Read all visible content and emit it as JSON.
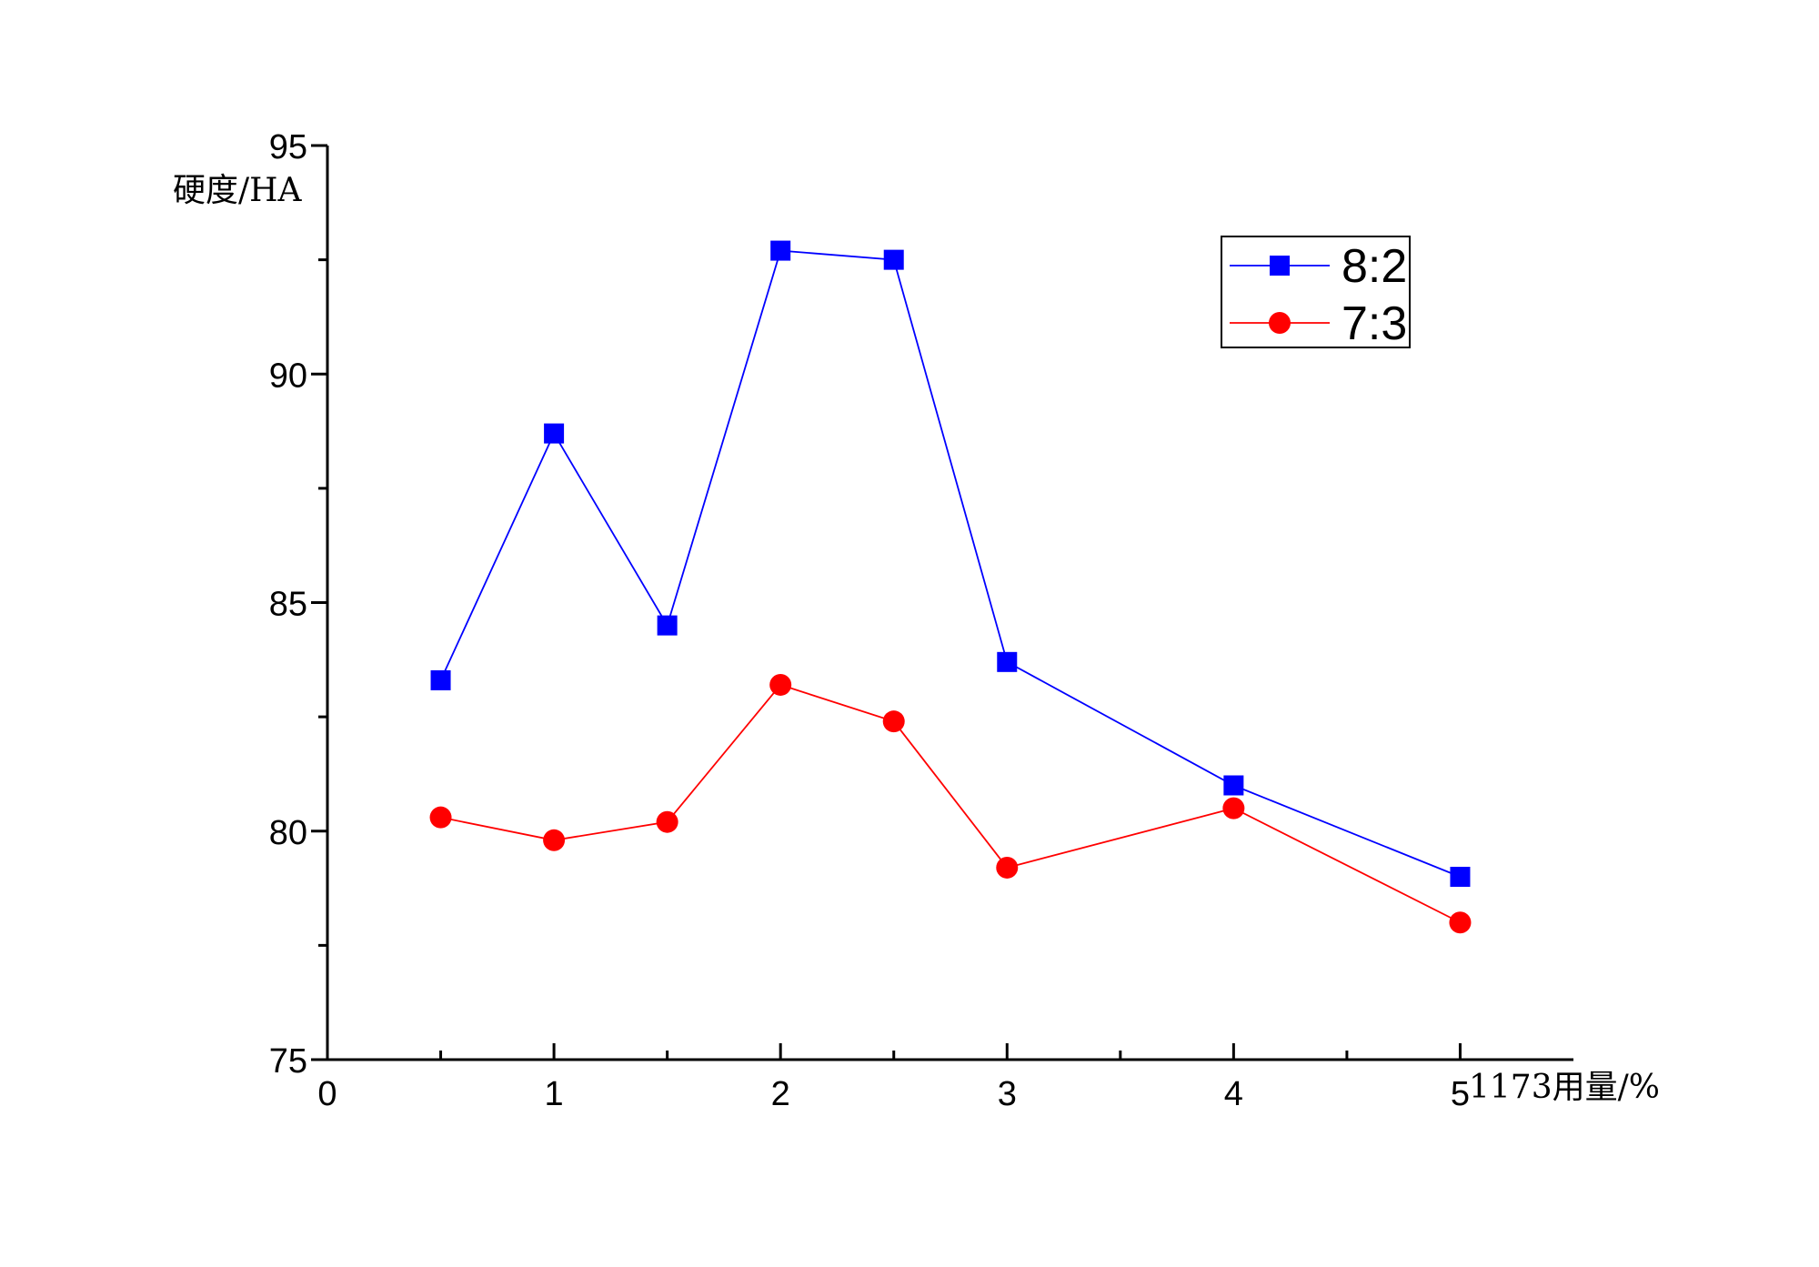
{
  "chart_data": {
    "type": "line",
    "xlabel": "1173用量/%",
    "ylabel": "硬度/HA",
    "xlim": [
      0,
      5.5
    ],
    "ylim": [
      75,
      95
    ],
    "x_ticks": [
      0,
      1,
      2,
      3,
      4,
      5
    ],
    "x_minor_ticks": [
      0.5,
      1.5,
      2.5,
      3.5,
      4.5
    ],
    "y_ticks": [
      75,
      80,
      85,
      90,
      95
    ],
    "y_minor_ticks": [
      77.5,
      82.5,
      87.5,
      92.5
    ],
    "grid": false,
    "legend_position": "top-right",
    "series": [
      {
        "name": "8:2",
        "color": "#0000ff",
        "marker": "square",
        "x": [
          0.5,
          1,
          1.5,
          2,
          2.5,
          3,
          4,
          5
        ],
        "y": [
          83.3,
          88.7,
          84.5,
          92.7,
          92.5,
          83.7,
          81.0,
          79.0
        ]
      },
      {
        "name": "7:3",
        "color": "#ff0000",
        "marker": "circle",
        "x": [
          0.5,
          1,
          1.5,
          2,
          2.5,
          3,
          4,
          5
        ],
        "y": [
          80.3,
          79.8,
          80.2,
          83.2,
          82.4,
          79.2,
          80.5,
          78.0
        ]
      }
    ]
  }
}
